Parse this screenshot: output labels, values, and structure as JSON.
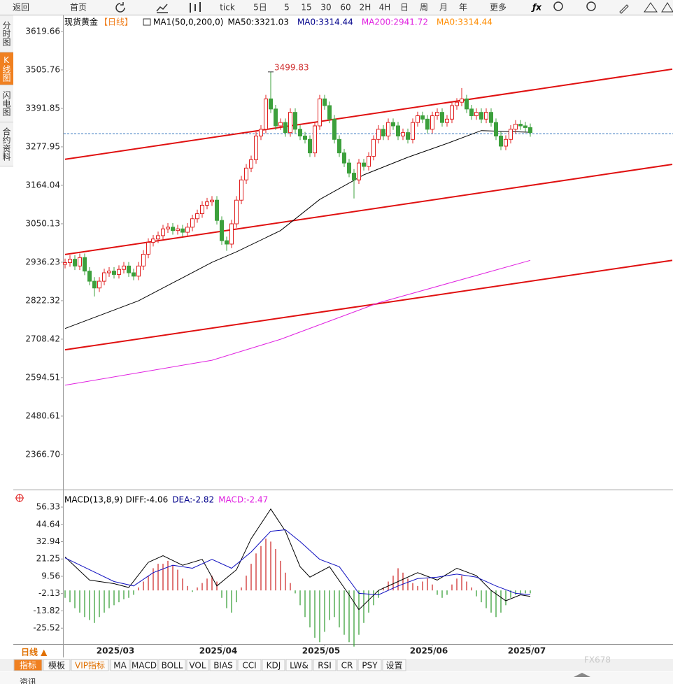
{
  "toolbar": [
    "返回",
    "首页",
    "tick",
    "5日",
    "5",
    "15",
    "30",
    "60",
    "2H",
    "4H",
    "日",
    "周",
    "月",
    "年",
    "更多"
  ],
  "sidebar": [
    "分时图",
    "K线图",
    "闪电图",
    "合约资料"
  ],
  "chart_data": [
    {
      "type": "candlestick",
      "title": "现货黄金",
      "period": "【日线】",
      "indicator": "MA1(50,0,200,0)",
      "legend": [
        {
          "label": "MA50:3321.03",
          "color": "#000000"
        },
        {
          "label": "MA0:3314.44",
          "color": "#00008b"
        },
        {
          "label": "MA200:2941.72",
          "color": "#e020e0"
        },
        {
          "label": "MA0:3314.44",
          "color": "#ff8c00"
        }
      ],
      "ylim": [
        2263,
        3661
      ],
      "yticks": [
        3619.66,
        3505.76,
        3391.85,
        3277.95,
        3164.04,
        3050.13,
        2936.23,
        2822.32,
        2708.42,
        2594.51,
        2480.61,
        {
          "value": 2366.7,
          "label": "2366.70"
        }
      ],
      "up_color": "#e02020",
      "down_color": "#3ca03c",
      "open": [
        2930,
        2935,
        2945,
        2925,
        2950,
        2910,
        2880,
        2860,
        2880,
        2905,
        2910,
        2900,
        2915,
        2925,
        2905,
        2895,
        2925,
        2960,
        2995,
        3005,
        3015,
        3035,
        3040,
        3030,
        3035,
        3025,
        3040,
        3065,
        3080,
        3105,
        3115,
        3120,
        3060,
        3000,
        2990,
        3050,
        3120,
        3180,
        3215,
        3240,
        3310,
        3330,
        3420,
        3390,
        3340,
        3350,
        3320,
        3380,
        3330,
        3310,
        3300,
        3260,
        3340,
        3420,
        3400,
        3360,
        3300,
        3260,
        3230,
        3200,
        3180,
        3230,
        3220,
        3250,
        3300,
        3330,
        3310,
        3350,
        3340,
        3310,
        3320,
        3300,
        3350,
        3370,
        3360,
        3330,
        3370,
        3380,
        3350,
        3360,
        3400,
        3410,
        3420,
        3390,
        3370,
        3380,
        3360,
        3380,
        3350,
        3310,
        3280,
        3300,
        3330,
        3345,
        3340,
        3335
      ],
      "high": [
        2947,
        2957,
        2957,
        2962,
        2962,
        2922,
        2892,
        2892,
        2917,
        2922,
        2922,
        2927,
        2937,
        2937,
        2917,
        2937,
        2972,
        3007,
        3017,
        3027,
        3047,
        3052,
        3052,
        3047,
        3047,
        3052,
        3077,
        3092,
        3117,
        3127,
        3132,
        3132,
        3072,
        3012,
        3062,
        3132,
        3192,
        3227,
        3252,
        3322,
        3342,
        3432,
        3499.83,
        3402,
        3362,
        3362,
        3392,
        3392,
        3342,
        3322,
        3312,
        3352,
        3432,
        3432,
        3412,
        3372,
        3312,
        3272,
        3242,
        3212,
        3242,
        3242,
        3262,
        3312,
        3342,
        3342,
        3362,
        3362,
        3352,
        3332,
        3332,
        3362,
        3382,
        3382,
        3372,
        3382,
        3392,
        3392,
        3372,
        3412,
        3422,
        3452,
        3432,
        3402,
        3392,
        3392,
        3392,
        3392,
        3362,
        3322,
        3312,
        3342,
        3357,
        3357,
        3352,
        3347
      ],
      "low": [
        2918,
        2923,
        2913,
        2913,
        2898,
        2868,
        2835,
        2848,
        2868,
        2893,
        2888,
        2888,
        2903,
        2893,
        2883,
        2883,
        2913,
        2948,
        2983,
        2993,
        3003,
        3023,
        3018,
        3018,
        3013,
        3013,
        3028,
        3053,
        3068,
        3093,
        3103,
        3048,
        2988,
        2970,
        2978,
        3038,
        3108,
        3168,
        3203,
        3228,
        3298,
        3318,
        3378,
        3328,
        3328,
        3308,
        3308,
        3318,
        3298,
        3288,
        3248,
        3248,
        3328,
        3388,
        3348,
        3288,
        3248,
        3218,
        3188,
        3125,
        3168,
        3208,
        3208,
        3238,
        3288,
        3298,
        3298,
        3328,
        3298,
        3298,
        3288,
        3288,
        3338,
        3348,
        3318,
        3318,
        3358,
        3338,
        3338,
        3348,
        3388,
        3398,
        3378,
        3358,
        3358,
        3348,
        3348,
        3338,
        3298,
        3268,
        3268,
        3288,
        3318,
        3328,
        3323,
        3308
      ],
      "close": [
        2935,
        2945,
        2925,
        2950,
        2910,
        2880,
        2860,
        2880,
        2905,
        2910,
        2900,
        2915,
        2925,
        2905,
        2895,
        2925,
        2960,
        2995,
        3005,
        3015,
        3035,
        3040,
        3030,
        3035,
        3025,
        3040,
        3065,
        3080,
        3105,
        3115,
        3120,
        3060,
        3000,
        2990,
        3050,
        3120,
        3180,
        3215,
        3240,
        3310,
        3330,
        3420,
        3390,
        3340,
        3350,
        3320,
        3380,
        3330,
        3310,
        3300,
        3260,
        3340,
        3420,
        3400,
        3360,
        3300,
        3260,
        3230,
        3200,
        3180,
        3230,
        3220,
        3250,
        3300,
        3330,
        3310,
        3350,
        3340,
        3310,
        3320,
        3300,
        3350,
        3370,
        3360,
        3330,
        3370,
        3380,
        3350,
        3360,
        3400,
        3410,
        3420,
        3390,
        3370,
        3380,
        3360,
        3380,
        3350,
        3310,
        3280,
        3300,
        3330,
        3345,
        3340,
        3335,
        3320
      ],
      "lines": [
        {
          "color": "#000000",
          "x": [
            0,
            15,
            30,
            35,
            44,
            52,
            61,
            70,
            78,
            85,
            95
          ],
          "values": [
            2740,
            2822,
            2936,
            2967,
            3030,
            3122,
            3195,
            3247,
            3288,
            3326,
            3321.03
          ]
        },
        {
          "color": "#e020e0",
          "x": [
            0,
            30,
            44,
            64,
            95
          ],
          "values": [
            2572,
            2646,
            2708,
            2816,
            2941.72
          ]
        }
      ],
      "trend_lines": [
        {
          "color": "#e01010",
          "x": [
            0,
            124
          ],
          "values": [
            3241,
            3508
          ]
        },
        {
          "color": "#e01010",
          "x": [
            0,
            124
          ],
          "values": [
            2959,
            3226
          ]
        },
        {
          "color": "#e01010",
          "x": [
            0,
            124
          ],
          "values": [
            2677,
            2942
          ]
        }
      ],
      "price_line": 3317,
      "peak_label": 3499.83
    },
    {
      "type": "macd",
      "title": "MACD(13,8,9)",
      "legend": [
        {
          "label": "DIFF:-4.06",
          "color": "#000000"
        },
        {
          "label": "DEA:-2.82",
          "color": "#00008b"
        },
        {
          "label": "MACD:-2.47",
          "color": "#e020e0"
        }
      ],
      "ylim": [
        -38.2,
        65.8
      ],
      "yticks": [
        56.33,
        44.64,
        32.94,
        21.25,
        9.56,
        -2.13,
        -13.82,
        -25.52
      ],
      "histogram": [
        -5,
        -8,
        -12,
        -15,
        -18,
        -20,
        -22,
        -18,
        -15,
        -12,
        -10,
        -8,
        -6,
        -5,
        -3,
        2,
        6,
        10,
        15,
        18,
        18,
        20,
        17,
        14,
        8,
        3,
        -1,
        2,
        5,
        8,
        10,
        6,
        -5,
        -12,
        -15,
        -8,
        2,
        10,
        18,
        25,
        30,
        35,
        33,
        28,
        20,
        12,
        5,
        -2,
        -10,
        -18,
        -25,
        -32,
        -35,
        -28,
        -20,
        -18,
        -25,
        -30,
        -35,
        -38,
        -30,
        -22,
        -15,
        -10,
        -5,
        2,
        6,
        10,
        15,
        12,
        8,
        5,
        3,
        6,
        8,
        4,
        -3,
        -5,
        -3,
        4,
        8,
        10,
        6,
        2,
        -4,
        -8,
        -12,
        -15,
        -18,
        -15,
        -10,
        -5,
        -3,
        -2,
        -2,
        -2
      ],
      "diff": {
        "color": "#000000",
        "x": [
          0,
          5,
          10,
          13,
          17,
          20,
          24,
          28,
          31,
          35,
          38,
          42,
          45,
          48,
          50,
          54,
          58,
          60,
          64,
          68,
          72,
          76,
          80,
          84,
          87,
          90,
          93,
          95
        ],
        "values": [
          22.6,
          7,
          4.6,
          2,
          19,
          23.5,
          17,
          21,
          3,
          14,
          35,
          55,
          40,
          16,
          9,
          16,
          -3,
          -13,
          0,
          6,
          12,
          7,
          15,
          10,
          0,
          -7,
          -3,
          -4.06
        ]
      },
      "dea": {
        "color": "#1010c0",
        "x": [
          0,
          5,
          10,
          14,
          18,
          22,
          26,
          30,
          34,
          38,
          42,
          45,
          48,
          52,
          56,
          60,
          64,
          68,
          72,
          76,
          80,
          84,
          88,
          92,
          95
        ],
        "values": [
          22,
          14,
          6,
          3,
          12,
          17,
          15,
          21,
          15,
          26,
          40,
          41,
          33,
          21,
          16,
          -2,
          -3,
          3,
          8,
          9,
          11,
          9,
          3,
          -2,
          -2.82
        ]
      },
      "xticks": [
        {
          "value": 11,
          "label": "2025/03"
        },
        {
          "value": 32,
          "label": "2025/04"
        },
        {
          "value": 53,
          "label": "2025/05"
        },
        {
          "value": 75,
          "label": "2025/06"
        },
        {
          "value": 95,
          "label": "2025/07"
        }
      ]
    }
  ],
  "period_button": "日线 ▲",
  "tabs": [
    "指标",
    "模板",
    "VIP指标",
    "MA",
    "MACD",
    "BOLL",
    "VOL",
    "BIAS",
    "CCI",
    "KDJ",
    "LW&",
    "RSI",
    "CR",
    "PSY",
    "设置"
  ],
  "bottom_tab": "资讯",
  "watermark": "FX678"
}
